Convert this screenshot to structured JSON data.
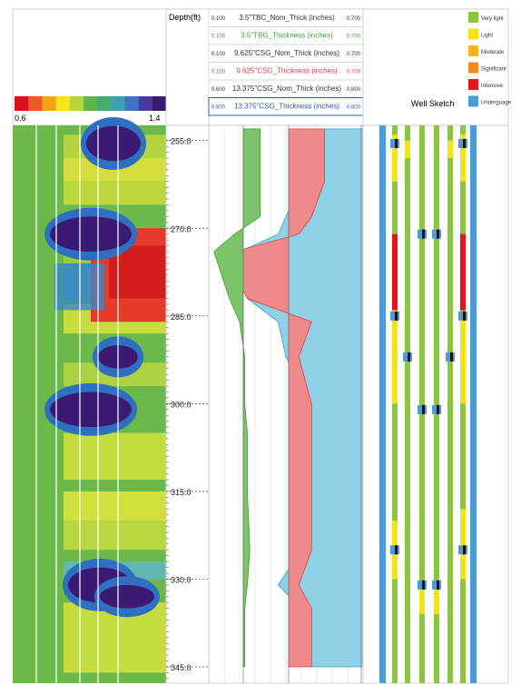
{
  "scale_bar": {
    "min_label": "0.6",
    "max_label": "1.4"
  },
  "depth_track": {
    "header": "Depth(ft)",
    "range": [
      252.4,
      347.8
    ],
    "tick_labels": [
      "255.0",
      "270.0",
      "285.0",
      "300.0",
      "315.0",
      "330.0",
      "345.0"
    ]
  },
  "curve_headers": [
    {
      "name": "3.5\"TBC_Nom_Thick (inches)",
      "min": "0.100",
      "max": "0.700",
      "color": "#333333"
    },
    {
      "name": "3.5\"TBG_Thickness (inches)",
      "min": "0.100",
      "max": "0.700",
      "color": "#3f9b3f"
    },
    {
      "name": "9.625\"CSG_Nom_Thick (inches)",
      "min": "0.100",
      "max": "0.700",
      "color": "#333333"
    },
    {
      "name": "9.625\"CSG_Thickness (inches)",
      "min": "0.100",
      "max": "0.700",
      "color": "#e23c3c"
    },
    {
      "name": "13.375\"CSG_Nom_Thick (inches)",
      "min": "0.600",
      "max": "0.800",
      "color": "#333333"
    },
    {
      "name": "13.375\"CSG_Thickness (inches)",
      "min": "0.600",
      "max": "0.800",
      "color": "#2f5fb0"
    }
  ],
  "legend": {
    "title": "Well Sketch",
    "items": [
      {
        "label": "Very light",
        "color": "#8cc63f"
      },
      {
        "label": "Light",
        "color": "#f5e31a"
      },
      {
        "label": "Moderate",
        "color": "#f6b617"
      },
      {
        "label": "Significant",
        "color": "#f08a24"
      },
      {
        "label": "Intensive",
        "color": "#e8141c"
      },
      {
        "label": "Underguage",
        "color": "#4f9ad6"
      }
    ]
  },
  "chart_data": {
    "type": "line",
    "depth_unit": "ft",
    "depth_range": [
      252.4,
      347.8
    ],
    "heatmap_scale": [
      0.6,
      1.4
    ],
    "anomaly_depths_ft": [
      255.5,
      271.0,
      278.0,
      285.0,
      292.0,
      301.0,
      325.0,
      331.0,
      333.0
    ],
    "series": [
      {
        "name": "3.5\"TBG_Thickness (inches)",
        "depth": [
          253,
          262,
          268,
          271,
          274,
          278,
          282,
          286,
          292,
          300,
          305,
          315,
          325,
          331,
          335,
          345
        ],
        "values": [
          0.3,
          0.3,
          0.3,
          0.2,
          0.12,
          0.15,
          0.18,
          0.22,
          0.24,
          0.24,
          0.25,
          0.25,
          0.26,
          0.25,
          0.24,
          0.24
        ]
      },
      {
        "name": "9.625\"CSG_Thickness (inches)",
        "depth": [
          253,
          262,
          268,
          271,
          274,
          278,
          282,
          286,
          292,
          300,
          305,
          315,
          325,
          331,
          335,
          345
        ],
        "values": [
          0.55,
          0.55,
          0.5,
          0.45,
          0.2,
          0.2,
          0.25,
          0.5,
          0.45,
          0.5,
          0.5,
          0.5,
          0.5,
          0.45,
          0.5,
          0.5
        ]
      },
      {
        "name": "13.375\"CSG_Thickness (inches)",
        "depth": [
          253,
          258,
          262,
          268,
          271,
          274,
          278,
          282,
          286,
          292,
          300,
          305,
          315,
          325,
          331,
          335,
          345
        ],
        "values": [
          0.74,
          0.73,
          0.72,
          0.7,
          0.69,
          0.64,
          0.64,
          0.65,
          0.69,
          0.7,
          0.73,
          0.72,
          0.71,
          0.72,
          0.69,
          0.72,
          0.73
        ]
      }
    ]
  }
}
